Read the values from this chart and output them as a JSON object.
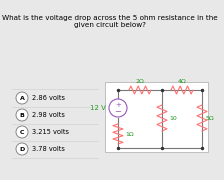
{
  "title": "What is the voltage drop across the 5 ohm resistance in the given circuit below?",
  "title_fontsize": 5.2,
  "bg_color": "#e8e8e8",
  "circuit_bg": "#ffffff",
  "resistor_color": "#ff7070",
  "wire_color": "#777777",
  "source_color": "#9955bb",
  "label_color": "#229922",
  "answers": [
    {
      "label": "A",
      "text": "2.86 volts"
    },
    {
      "label": "B",
      "text": "2.98 volts"
    },
    {
      "label": "C",
      "text": "3.215 volts"
    },
    {
      "label": "D",
      "text": "3.78 volts"
    }
  ],
  "r_labels": [
    "2Ω",
    "4Ω",
    "1Ω",
    "10",
    "5Ω"
  ],
  "voltage_label": "12 V"
}
